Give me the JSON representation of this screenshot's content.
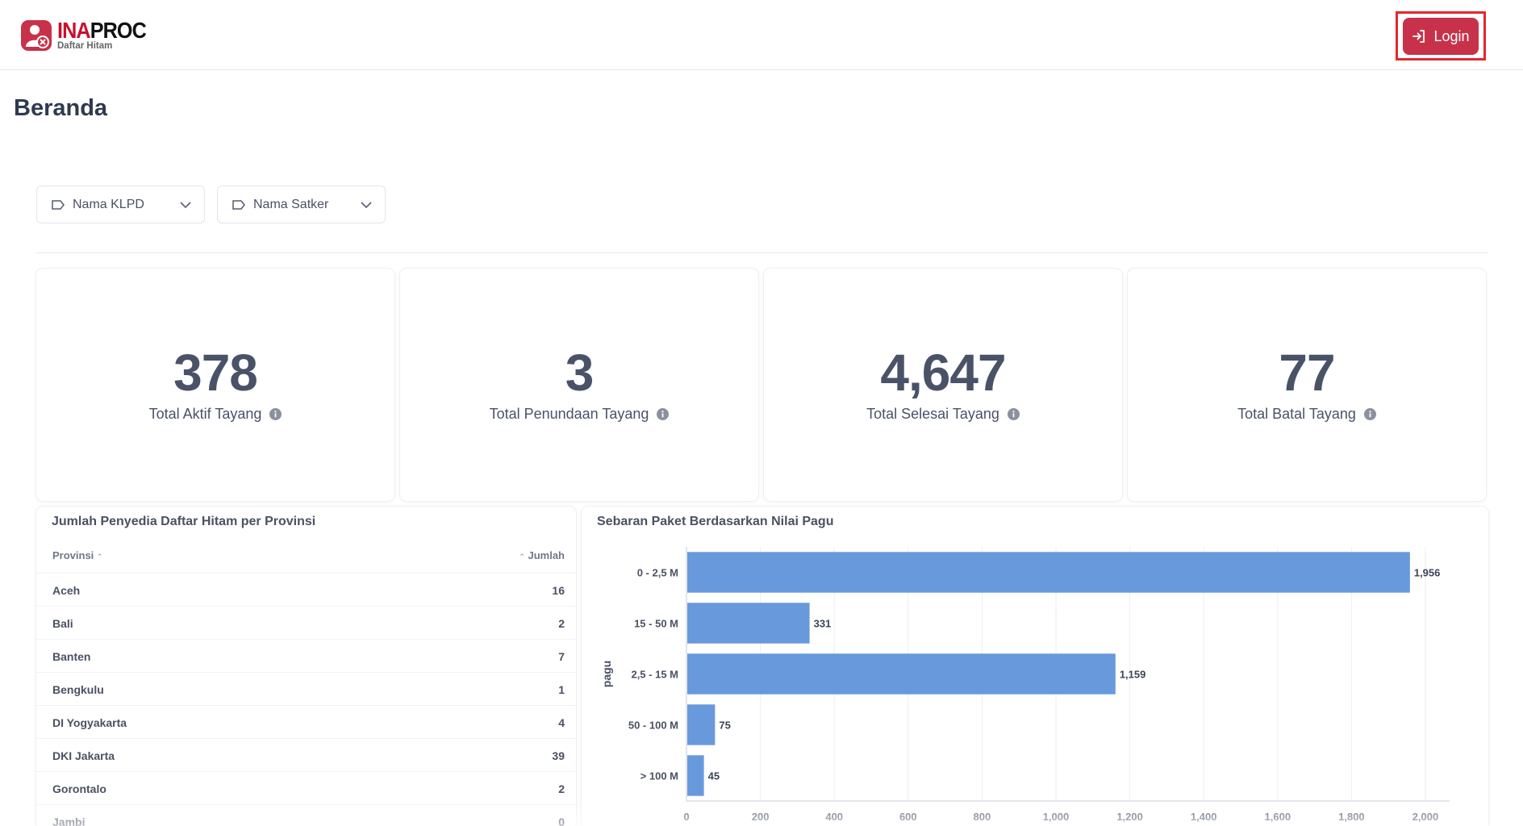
{
  "header": {
    "logo_ina": "INA",
    "logo_proc": "PROC",
    "logo_subtitle": "Daftar Hitam",
    "login_label": "Login"
  },
  "page": {
    "title": "Beranda"
  },
  "filters": [
    {
      "label": "Nama KLPD"
    },
    {
      "label": "Nama Satker"
    }
  ],
  "stats": [
    {
      "value": "378",
      "label": "Total Aktif Tayang"
    },
    {
      "value": "3",
      "label": "Total Penundaan Tayang"
    },
    {
      "value": "4,647",
      "label": "Total Selesai Tayang"
    },
    {
      "value": "77",
      "label": "Total Batal Tayang"
    }
  ],
  "province_table": {
    "title": "Jumlah Penyedia Daftar Hitam per Provinsi",
    "col_provinsi": "Provinsi",
    "col_jumlah": "Jumlah",
    "rows": [
      {
        "provinsi": "Aceh",
        "jumlah": "16"
      },
      {
        "provinsi": "Bali",
        "jumlah": "2"
      },
      {
        "provinsi": "Banten",
        "jumlah": "7"
      },
      {
        "provinsi": "Bengkulu",
        "jumlah": "1"
      },
      {
        "provinsi": "DI Yogyakarta",
        "jumlah": "4"
      },
      {
        "provinsi": "DKI Jakarta",
        "jumlah": "39"
      },
      {
        "provinsi": "Gorontalo",
        "jumlah": "2"
      },
      {
        "provinsi": "Jambi",
        "jumlah": "0"
      }
    ]
  },
  "chart_panel": {
    "title": "Sebaran Paket Berdasarkan Nilai Pagu"
  },
  "chart_data": {
    "type": "bar",
    "orientation": "horizontal",
    "title": "Sebaran Paket Berdasarkan Nilai Pagu",
    "ylabel": "pagu",
    "xlabel": "",
    "categories": [
      "0 - 2,5 M",
      "15 - 50 M",
      "2,5 - 15 M",
      "50 - 100 M",
      "> 100 M"
    ],
    "values": [
      1956,
      331,
      1159,
      75,
      45
    ],
    "value_labels": [
      "1,956",
      "331",
      "1,159",
      "75",
      "45"
    ],
    "xlim": [
      0,
      2000
    ],
    "xticks": [
      0,
      200,
      400,
      600,
      800,
      1000,
      1200,
      1400,
      1600,
      1800,
      2000
    ],
    "xtick_labels": [
      "0",
      "200",
      "400",
      "600",
      "800",
      "1,000",
      "1,200",
      "1,400",
      "1,600",
      "1,800",
      "2,000"
    ],
    "bar_color": "#6899dc",
    "grid": true
  },
  "colors": {
    "accent": "#c8314a",
    "highlight_outline": "#e5262e",
    "bar": "#6899dc"
  }
}
